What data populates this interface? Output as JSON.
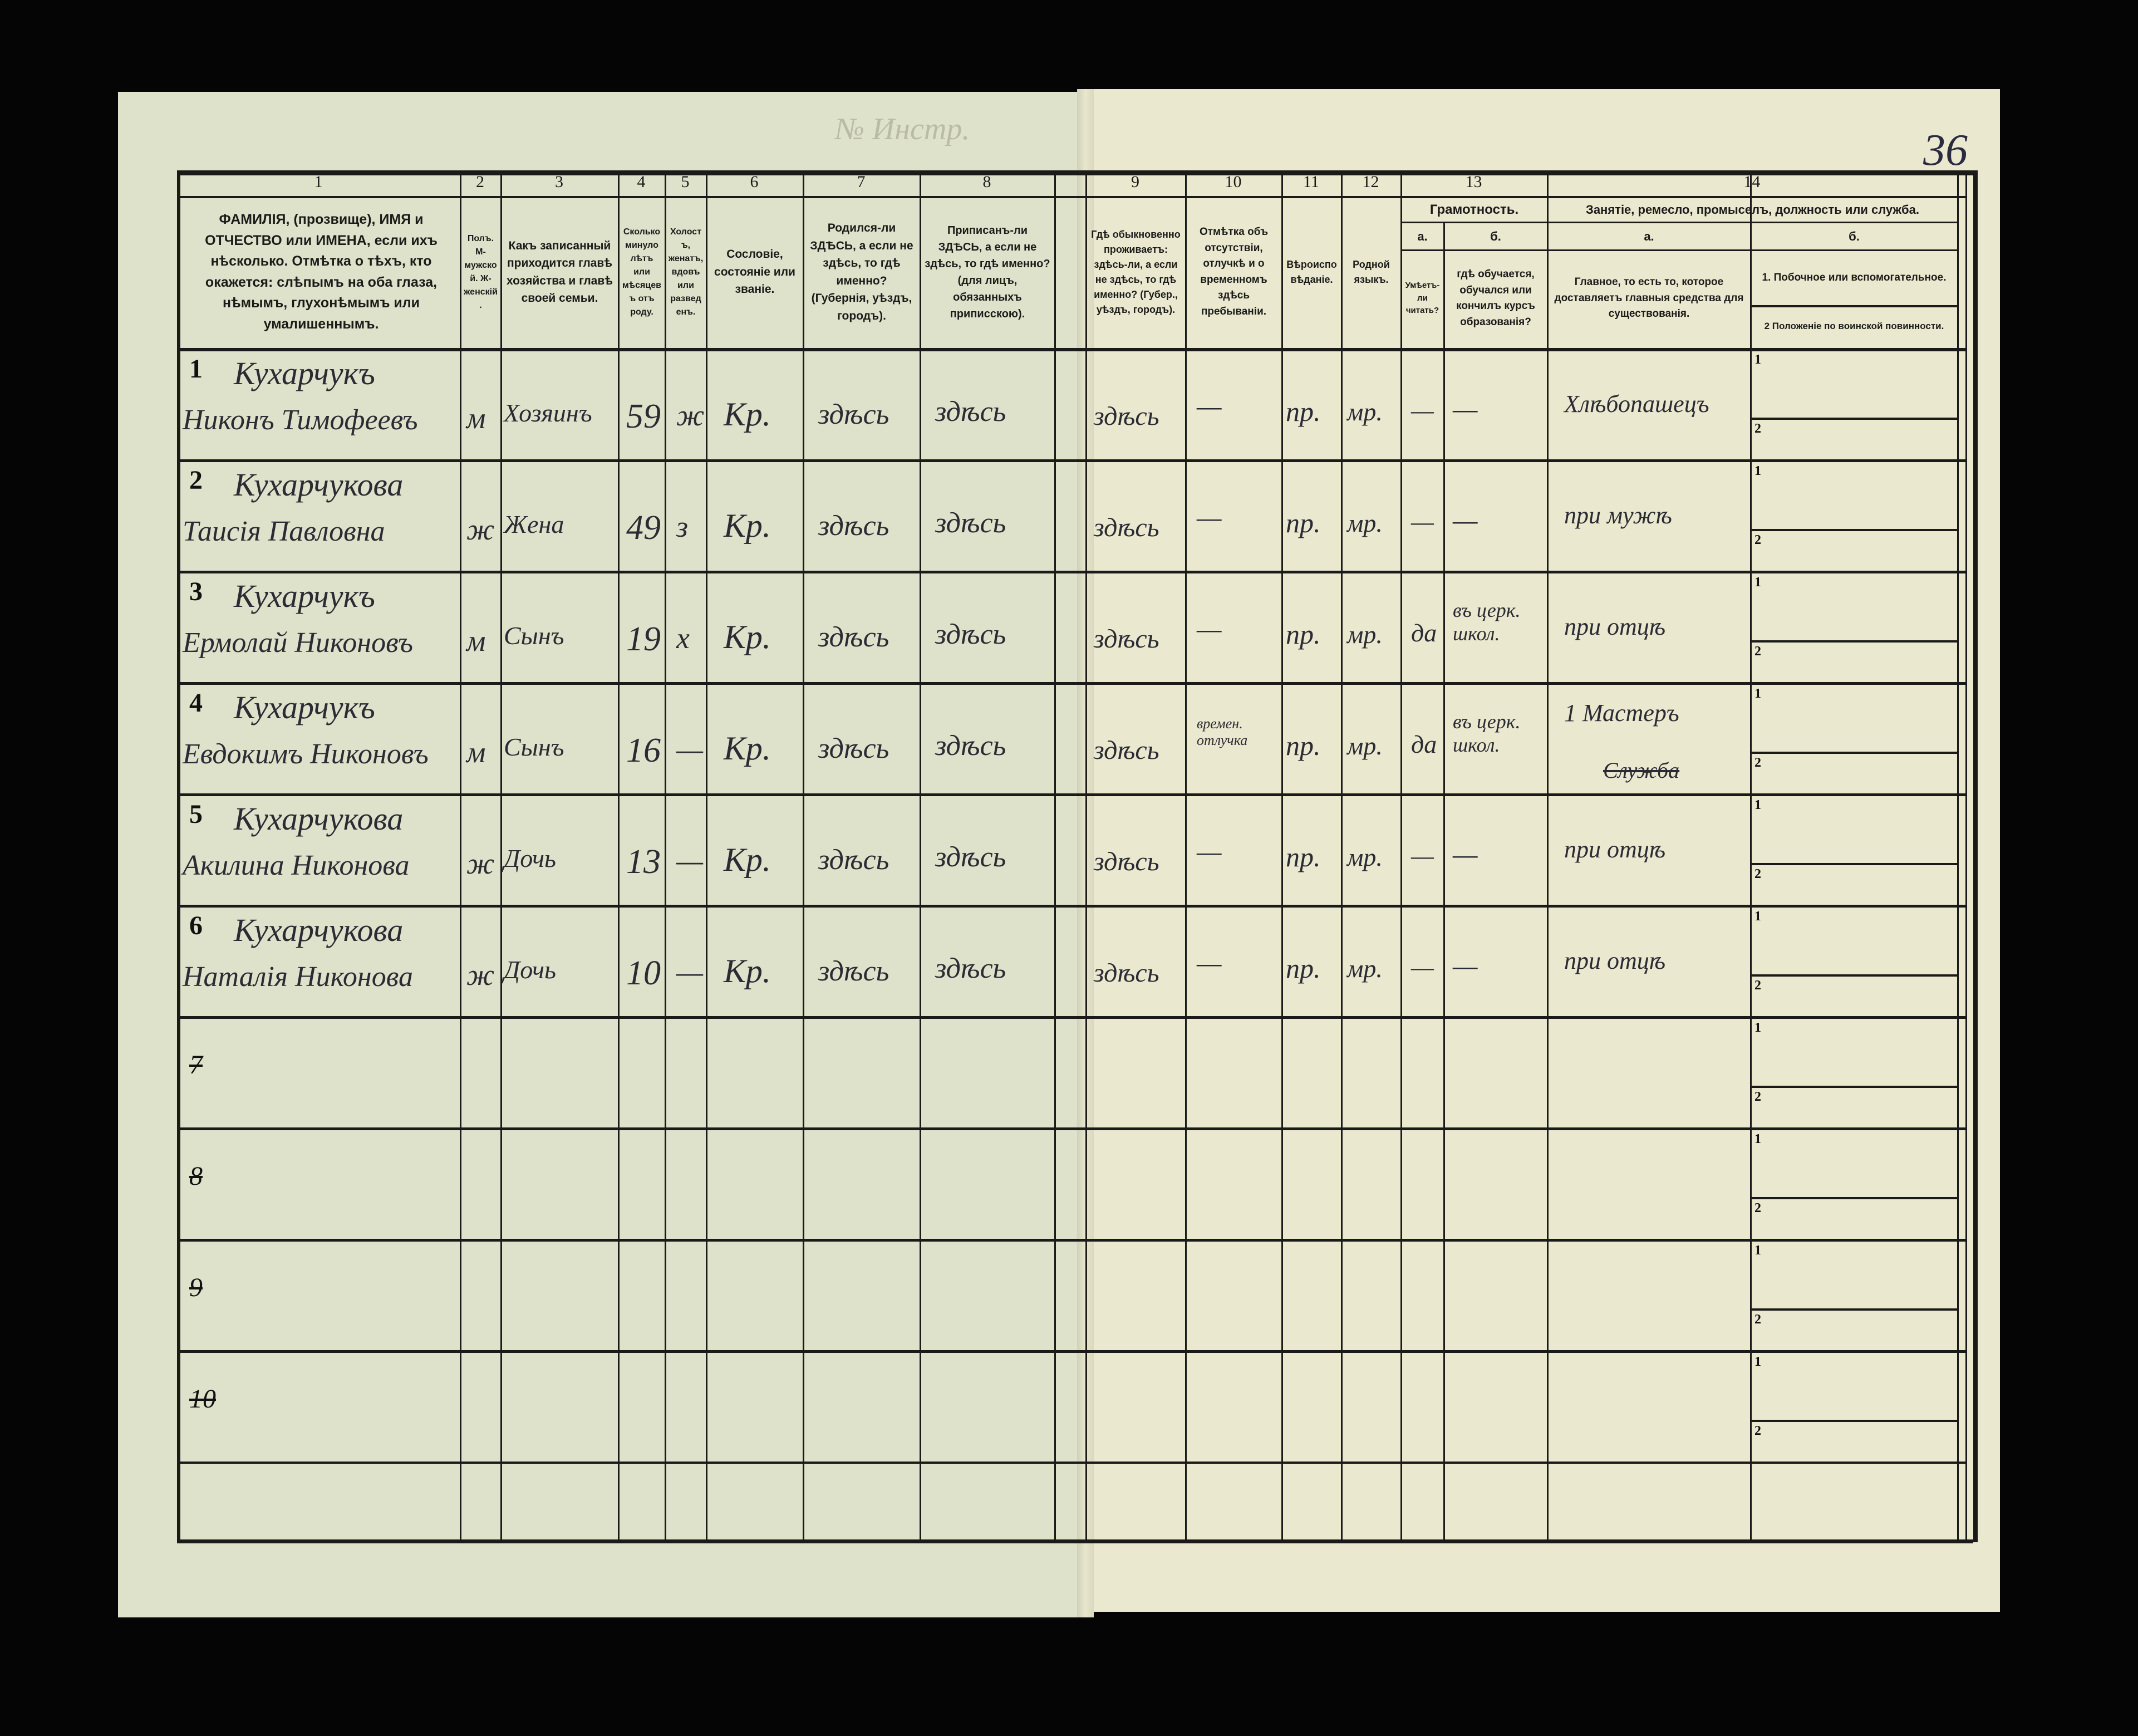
{
  "document": {
    "top_mark": "№ Инстр.",
    "page_number": "36"
  },
  "header": {
    "column_numbers": [
      "1",
      "2",
      "3",
      "4",
      "5",
      "6",
      "7",
      "8",
      "9",
      "10",
      "11",
      "12",
      "13",
      "14"
    ],
    "col1": "ФАМИЛІЯ, (прозвище), ИМЯ и ОТЧЕСТВО или ИМЕНА, если ихъ нѣсколько. Отмѣтка о тѣхъ, кто окажется: слѣпымъ на оба глаза, нѣмымъ, глухонѣмымъ или умалишеннымъ.",
    "col2": "Полъ. М-мужской. Ж-женскій.",
    "col3": "Какъ записанный приходится главѣ хозяйства и главѣ своей семьи.",
    "col4": "Сколько минуло лѣтъ или мѣсяцевъ отъ роду.",
    "col5": "Холостъ, женатъ, вдовъ или разведенъ.",
    "col6": "Сословіе, состояніе или званіе.",
    "col7": "Родился-ли ЗДѢСЬ, а если не здѣсь, то гдѣ именно? (Губернія, уѣздъ, городъ).",
    "col8": "Приписанъ-ли ЗДѢСЬ, а если не здѣсь, то гдѣ именно? (для лицъ, обязанныхъ приписскою).",
    "col9": "Гдѣ обыкновенно проживаетъ: здѣсь-ли, а если не здѣсь, то гдѣ именно? (Губер., уѣздъ, городъ).",
    "col10": "Отмѣтка объ отсутствіи, отлучкѣ и о временномъ здѣсь пребываніи.",
    "col11": "Вѣроисповѣданіе.",
    "col12": "Родной языкъ.",
    "col13_title": "Грамотность.",
    "col13a_letter": "а.",
    "col13a": "Умѣетъ-ли читать?",
    "col13b_letter": "б.",
    "col13b": "гдѣ обучается, обучался или кончилъ курсъ образованія?",
    "col14_title": "Занятіе, ремесло, промыселъ, должность или служба.",
    "col14a_letter": "а.",
    "col14a": "Главное, то есть то, которое доставляетъ главныя средства для существованія.",
    "col14b_letter": "б.",
    "col14b_1": "1. Побочное или вспомогательное.",
    "col14b_2": "2 Положеніе по воинской повинности."
  },
  "rows": [
    {
      "n": "1",
      "surname": "Кухарчукъ",
      "given": "Никонъ Тимофеевъ",
      "sex": "м",
      "relation": "Хозяинъ",
      "age": "59",
      "marital": "ж",
      "estate": "Кр.",
      "born": "здѣсь",
      "registered": "здѣсь",
      "resides": "здѣсь",
      "absence": "—",
      "religion": "пр.",
      "language": "мр.",
      "literate": "—",
      "education": "—",
      "occupation": "Хлѣбопашецъ",
      "occupation_struck": ""
    },
    {
      "n": "2",
      "surname": "Кухарчукова",
      "given": "Таисія Павловна",
      "sex": "ж",
      "relation": "Жена",
      "age": "49",
      "marital": "з",
      "estate": "Кр.",
      "born": "здѣсь",
      "registered": "здѣсь",
      "resides": "здѣсь",
      "absence": "—",
      "religion": "пр.",
      "language": "мр.",
      "literate": "—",
      "education": "—",
      "occupation": "при мужѣ",
      "occupation_struck": ""
    },
    {
      "n": "3",
      "surname": "Кухарчукъ",
      "given": "Ермолай Никоновъ",
      "sex": "м",
      "relation": "Сынъ",
      "age": "19",
      "marital": "х",
      "estate": "Кр.",
      "born": "здѣсь",
      "registered": "здѣсь",
      "resides": "здѣсь",
      "absence": "—",
      "religion": "пр.",
      "language": "мр.",
      "literate": "да",
      "education": "въ церк. школ.",
      "occupation": "при отцѣ",
      "occupation_struck": ""
    },
    {
      "n": "4",
      "surname": "Кухарчукъ",
      "given": "Евдокимъ Никоновъ",
      "sex": "м",
      "relation": "Сынъ",
      "age": "16",
      "marital": "—",
      "estate": "Кр.",
      "born": "здѣсь",
      "registered": "здѣсь",
      "resides": "здѣсь",
      "absence": "времен. отлучка",
      "religion": "пр.",
      "language": "мр.",
      "literate": "да",
      "education": "въ церк. школ.",
      "occupation": "1 Мастеръ",
      "occupation_struck": "Служба"
    },
    {
      "n": "5",
      "surname": "Кухарчукова",
      "given": "Акилина Никонова",
      "sex": "ж",
      "relation": "Дочь",
      "age": "13",
      "marital": "—",
      "estate": "Кр.",
      "born": "здѣсь",
      "registered": "здѣсь",
      "resides": "здѣсь",
      "absence": "—",
      "religion": "пр.",
      "language": "мр.",
      "literate": "—",
      "education": "—",
      "occupation": "при отцѣ",
      "occupation_struck": ""
    },
    {
      "n": "6",
      "surname": "Кухарчукова",
      "given": "Наталія Никонова",
      "sex": "ж",
      "relation": "Дочь",
      "age": "10",
      "marital": "—",
      "estate": "Кр.",
      "born": "здѣсь",
      "registered": "здѣсь",
      "resides": "здѣсь",
      "absence": "—",
      "religion": "пр.",
      "language": "мр.",
      "literate": "—",
      "education": "—",
      "occupation": "при отцѣ",
      "occupation_struck": ""
    },
    {
      "n": "7"
    },
    {
      "n": "8"
    },
    {
      "n": "9"
    },
    {
      "n": "10"
    }
  ],
  "sub_row_labels": [
    "1",
    "2"
  ],
  "colors": {
    "background": "#060505",
    "paper_left": "#dfe2cb",
    "paper_right": "#ebe8d0",
    "ink": "#2b2b33",
    "print": "#1b1b19"
  }
}
